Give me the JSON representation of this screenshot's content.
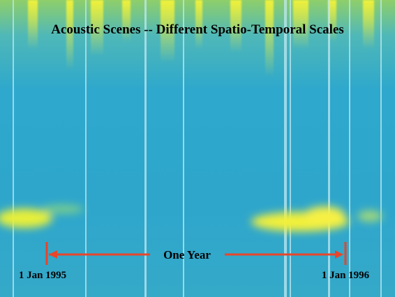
{
  "title": "Acoustic Scenes -- Different Spatio-Temporal Scales",
  "timeline": {
    "label": "One Year",
    "start": "1 Jan 1995",
    "end": "1 Jan 1996"
  }
}
